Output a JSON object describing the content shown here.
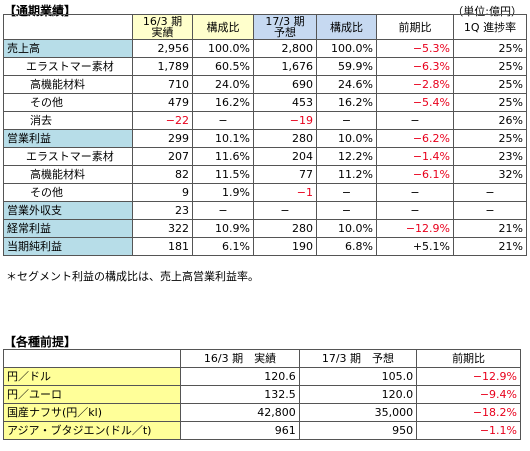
{
  "section1": {
    "title": "【通期業績】",
    "unit": "（単位:億円）",
    "headers": {
      "c1_line1": "16/3 期",
      "c1_line2": "実績",
      "c2": "構成比",
      "c3_line1": "17/3 期",
      "c3_line2": "予想",
      "c4": "構成比",
      "c5": "前期比",
      "c6": "1Q 進捗率"
    },
    "rows": [
      {
        "label": "売上高",
        "v1": "2,956",
        "v2": "100.0%",
        "v3": "2,800",
        "v4": "100.0%",
        "v5": "−5.3%",
        "v6": "25%"
      },
      {
        "label": "エラストマー素材",
        "v1": "1,789",
        "v2": "60.5%",
        "v3": "1,676",
        "v4": "59.9%",
        "v5": "−6.3%",
        "v6": "25%"
      },
      {
        "label": "高機能材料",
        "v1": "710",
        "v2": "24.0%",
        "v3": "690",
        "v4": "24.6%",
        "v5": "−2.8%",
        "v6": "25%"
      },
      {
        "label": "その他",
        "v1": "479",
        "v2": "16.2%",
        "v3": "453",
        "v4": "16.2%",
        "v5": "−5.4%",
        "v6": "25%"
      },
      {
        "label": "消去",
        "v1": "−22",
        "v2": "−",
        "v3": "−19",
        "v4": "−",
        "v5": "−",
        "v6": "26%"
      },
      {
        "label": "営業利益",
        "v1": "299",
        "v2": "10.1%",
        "v3": "280",
        "v4": "10.0%",
        "v5": "−6.2%",
        "v6": "25%"
      },
      {
        "label": "エラストマー素材",
        "v1": "207",
        "v2": "11.6%",
        "v3": "204",
        "v4": "12.2%",
        "v5": "−1.4%",
        "v6": "23%"
      },
      {
        "label": "高機能材料",
        "v1": "82",
        "v2": "11.5%",
        "v3": "77",
        "v4": "11.2%",
        "v5": "−6.1%",
        "v6": "32%"
      },
      {
        "label": "その他",
        "v1": "9",
        "v2": "1.9%",
        "v3": "−1",
        "v4": "−",
        "v5": "−",
        "v6": "−"
      },
      {
        "label": "営業外収支",
        "v1": "23",
        "v2": "−",
        "v3": "−",
        "v4": "−",
        "v5": "−",
        "v6": "−"
      },
      {
        "label": "経常利益",
        "v1": "322",
        "v2": "10.9%",
        "v3": "280",
        "v4": "10.0%",
        "v5": "−12.9%",
        "v6": "21%"
      },
      {
        "label": "当期純利益",
        "v1": "181",
        "v2": "6.1%",
        "v3": "190",
        "v4": "6.8%",
        "v5": "+5.1%",
        "v6": "21%"
      }
    ],
    "note": "＊セグメント利益の構成比は、売上高営業利益率。"
  },
  "section2": {
    "title": "【各種前提】",
    "headers": {
      "c1": "16/3 期　実績",
      "c2": "17/3 期　予想",
      "c3": "前期比"
    },
    "rows": [
      {
        "label": "円／ドル",
        "v1": "120.6",
        "v2": "105.0",
        "v3": "−12.9%"
      },
      {
        "label": "円／ユーロ",
        "v1": "132.5",
        "v2": "120.0",
        "v3": "−9.4%"
      },
      {
        "label": "国産ナフサ(円／kl)",
        "v1": "42,800",
        "v2": "35,000",
        "v3": "−18.2%"
      },
      {
        "label": "アジア・ブタジエン(ドル／t)",
        "v1": "961",
        "v2": "950",
        "v3": "−1.1%"
      }
    ]
  },
  "colors": {
    "negative": "#e8001c",
    "yellow_header": "#ffffcc",
    "blue_header": "#c6d9f1",
    "teal_label": "#b7dde8",
    "light_yellow_label": "#ffff99"
  }
}
